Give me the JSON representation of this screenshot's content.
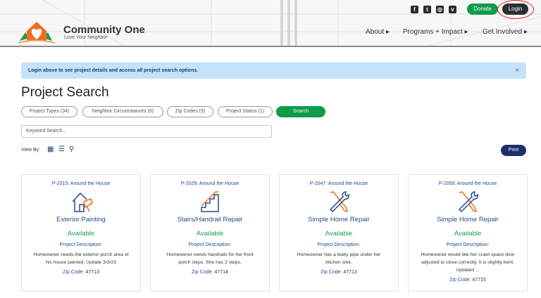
{
  "header": {
    "brand": "Community One",
    "tagline": "Love Your Neighbor",
    "social": [
      {
        "icon": "facebook-icon",
        "glyph": "f"
      },
      {
        "icon": "twitter-icon",
        "glyph": "t"
      },
      {
        "icon": "instagram-icon",
        "glyph": "◎"
      },
      {
        "icon": "vimeo-icon",
        "glyph": "v"
      }
    ],
    "donate": "Donate",
    "login": "Login",
    "nav": [
      "About ▸",
      "Programs + Impact ▸",
      "Get Involved ▸"
    ]
  },
  "alert": {
    "text": "Login above to see project details and access all project search options.",
    "close": "×"
  },
  "title": "Project Search",
  "filters": [
    "Project Types (34)",
    "Neighbor Circumstances (6)",
    "Zip Codes (9)",
    "Project Status (1)"
  ],
  "search_label": "Search",
  "keyword_placeholder": "Keyword Search...",
  "view_by": "View By:",
  "print": "Print",
  "desc_label": "Project Description:",
  "zip_label": "Zip Code:",
  "cards": [
    {
      "id": "P-2015: Around the House",
      "type": "Exterior Painting",
      "status": "Available",
      "desc": "Homeowner needs the exterior porch area of his house painted. Update 3/3/23",
      "zip": "47713",
      "icon": "house-paint-icon"
    },
    {
      "id": "P-2029: Around the House",
      "type": "Stairs/Handrail Repair",
      "status": "Available",
      "desc": "Homeowner needs handrails for her front porch steps. She has 2 steps.",
      "zip": "47714",
      "icon": "stairs-icon"
    },
    {
      "id": "P-2047: Around the House",
      "type": "Simple Home Repair",
      "status": "Available",
      "desc": "Homeowner has a leaky pipe under her kitchen sink.",
      "zip": "47713",
      "icon": "tools-icon"
    },
    {
      "id": "P-2059: Around the House",
      "type": "Simple Home Repair",
      "status": "Available",
      "desc": "Homeowner would like her crawl space door adjusted to close correctly. It is slightly bent. Updated ...",
      "zip": "47715",
      "icon": "tools-icon"
    }
  ],
  "colors": {
    "green": "#0f9b48",
    "navy": "#1b2f6b",
    "alert": "#c5e2fa",
    "orange": "#f26b21"
  }
}
